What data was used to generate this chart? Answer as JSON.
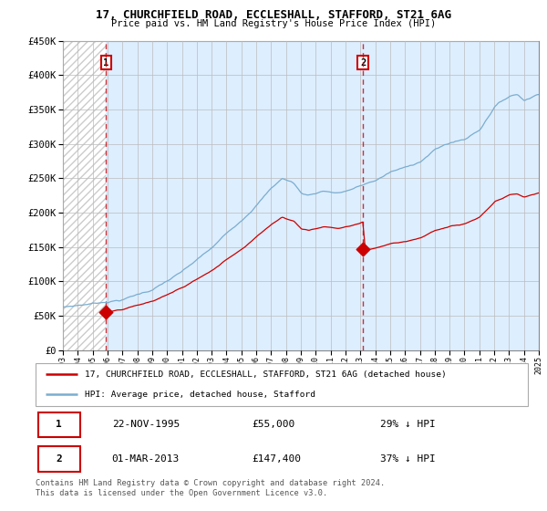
{
  "title": "17, CHURCHFIELD ROAD, ECCLESHALL, STAFFORD, ST21 6AG",
  "subtitle": "Price paid vs. HM Land Registry's House Price Index (HPI)",
  "ylim": [
    0,
    450000
  ],
  "yticks": [
    0,
    50000,
    100000,
    150000,
    200000,
    250000,
    300000,
    350000,
    400000,
    450000
  ],
  "sale1_date_num": 1995.9,
  "sale1_price": 55000,
  "sale1_label": "1",
  "sale2_date_num": 2013.17,
  "sale2_price": 147400,
  "sale2_label": "2",
  "property_color": "#cc0000",
  "hpi_color": "#7aadcf",
  "hpi_fill_color": "#ddeeff",
  "hatch_color": "#cccccc",
  "legend_property": "17, CHURCHFIELD ROAD, ECCLESHALL, STAFFORD, ST21 6AG (detached house)",
  "legend_hpi": "HPI: Average price, detached house, Stafford",
  "table_row1": [
    "1",
    "22-NOV-1995",
    "£55,000",
    "29% ↓ HPI"
  ],
  "table_row2": [
    "2",
    "01-MAR-2013",
    "£147,400",
    "37% ↓ HPI"
  ],
  "footnote": "Contains HM Land Registry data © Crown copyright and database right 2024.\nThis data is licensed under the Open Government Licence v3.0.",
  "xmin": 1993,
  "xmax": 2025
}
